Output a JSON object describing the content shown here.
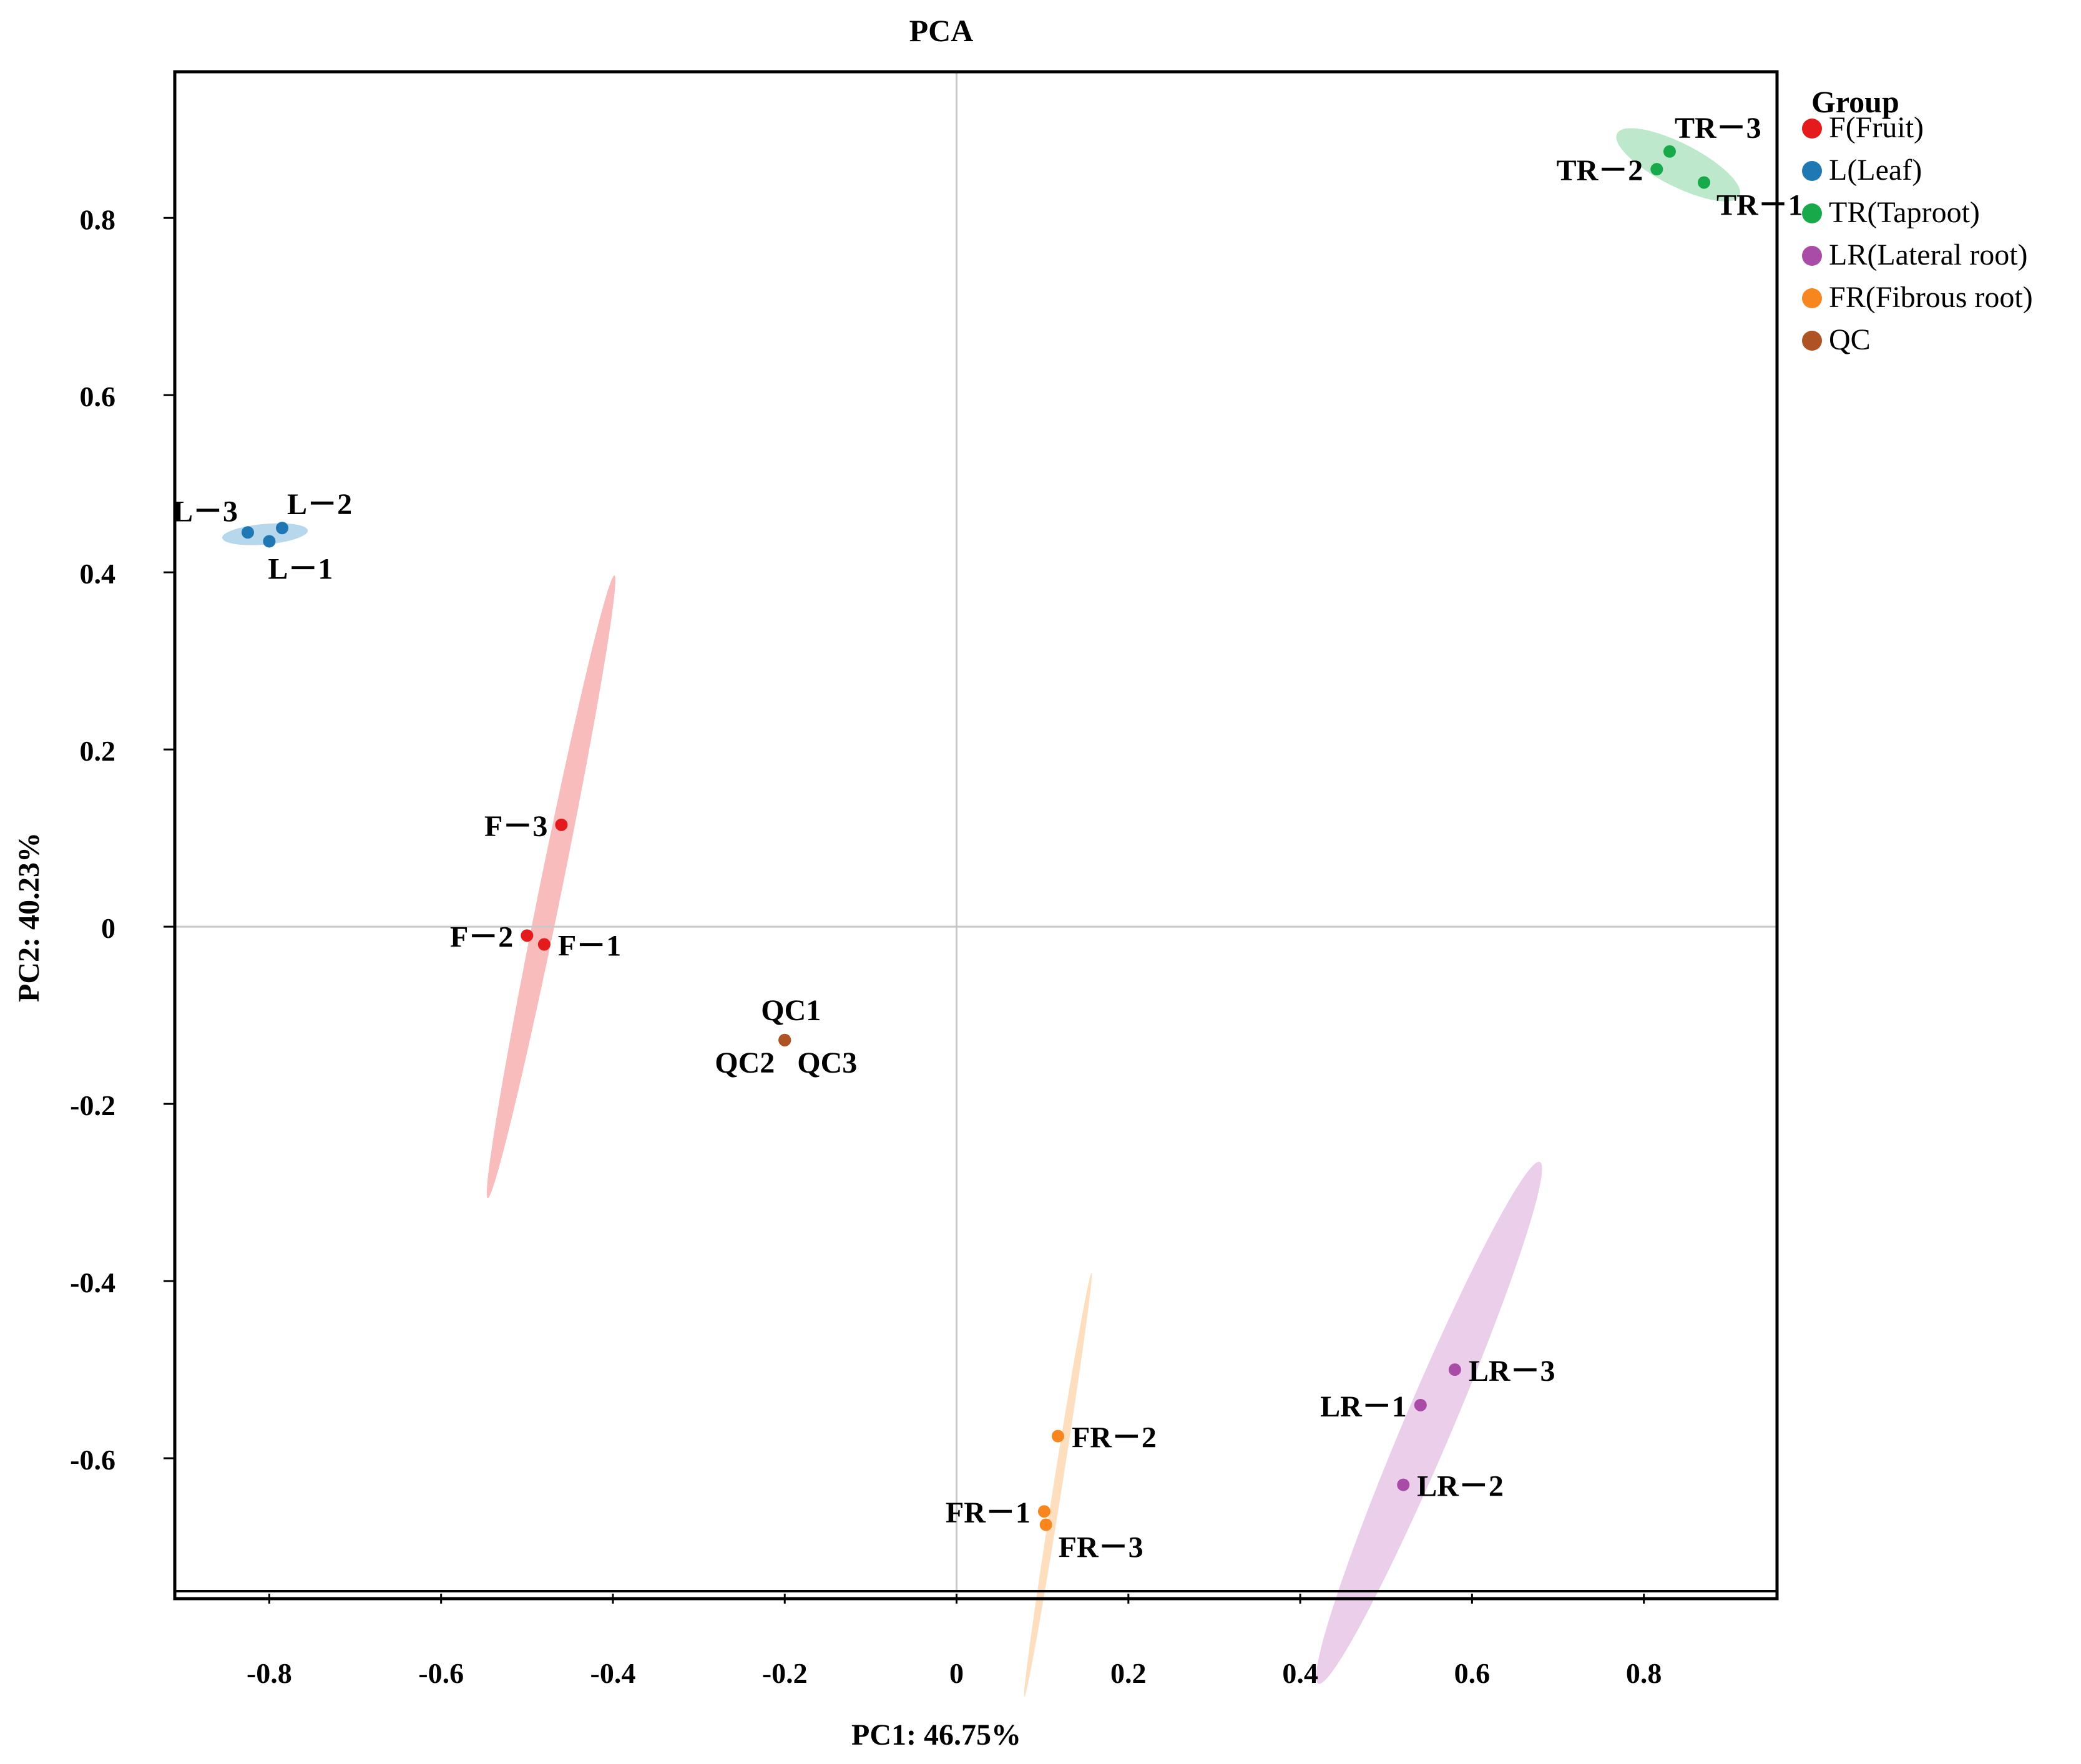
{
  "chart_data": {
    "type": "scatter",
    "title": "PCA",
    "xlabel": "PC1: 46.75%",
    "ylabel": "PC2: 40.23%",
    "xlim": [
      -0.91,
      0.955
    ],
    "ylim": [
      -0.75,
      0.965
    ],
    "xticks": [
      -0.8,
      -0.6,
      -0.4,
      -0.2,
      0,
      0.2,
      0.4,
      0.6,
      0.8
    ],
    "yticks": [
      0.8,
      0.6,
      0.4,
      0.2,
      0,
      -0.2,
      -0.4,
      -0.6
    ],
    "xtick_labels": [
      "-0.8",
      "-0.6",
      "-0.4",
      "-0.2",
      "0",
      "0.2",
      "0.4",
      "0.6",
      "0.8"
    ],
    "ytick_labels": [
      "0.8",
      "0.6",
      "0.4",
      "0.2",
      "0",
      "-0.2",
      "-0.4",
      "-0.6"
    ],
    "reference_lines": {
      "x": 0,
      "y": 0
    },
    "legend": {
      "title": "Group",
      "position": "right",
      "entries": [
        {
          "label": "F(Fruit)",
          "color": "#e41a1c"
        },
        {
          "label": "L(Leaf)",
          "color": "#1f78b4"
        },
        {
          "label": "TR(Taproot)",
          "color": "#18a94a"
        },
        {
          "label": "LR(Lateral root)",
          "color": "#a84ca8"
        },
        {
          "label": "FR(Fibrous root)",
          "color": "#f7861f"
        },
        {
          "label": "QC",
          "color": "#b05324"
        }
      ]
    },
    "series": [
      {
        "name": "F(Fruit)",
        "color": "#e41a1c",
        "ellipse": {
          "cx": -0.472,
          "cy": 0.045,
          "rx": 0.37,
          "ry": 0.013,
          "angle": 78.5,
          "fill": "#f48585"
        },
        "points": [
          {
            "label": "F－1",
            "x": -0.48,
            "y": -0.02,
            "anchor": "right"
          },
          {
            "label": "F－2",
            "x": -0.5,
            "y": -0.01,
            "anchor": "left"
          },
          {
            "label": "F－3",
            "x": -0.46,
            "y": 0.115,
            "anchor": "left"
          }
        ]
      },
      {
        "name": "L(Leaf)",
        "color": "#1f78b4",
        "ellipse": {
          "cx": -0.805,
          "cy": 0.443,
          "rx": 0.05,
          "ry": 0.012,
          "angle": 5,
          "fill": "#7cb7df"
        },
        "points": [
          {
            "label": "L－1",
            "x": -0.8,
            "y": 0.435,
            "anchor": "below"
          },
          {
            "label": "L－2",
            "x": -0.785,
            "y": 0.45,
            "anchor": "above-right"
          },
          {
            "label": "L－3",
            "x": -0.825,
            "y": 0.445,
            "anchor": "above-left"
          }
        ]
      },
      {
        "name": "TR(Taproot)",
        "color": "#18a94a",
        "ellipse": {
          "cx": 0.84,
          "cy": 0.86,
          "rx": 0.08,
          "ry": 0.025,
          "angle": -27,
          "fill": "#86d6a0"
        },
        "points": [
          {
            "label": "TR－1",
            "x": 0.87,
            "y": 0.84,
            "anchor": "below-right"
          },
          {
            "label": "TR－2",
            "x": 0.815,
            "y": 0.855,
            "anchor": "left"
          },
          {
            "label": "TR－3",
            "x": 0.83,
            "y": 0.875,
            "anchor": "above-right"
          }
        ]
      },
      {
        "name": "LR(Lateral root)",
        "color": "#a84ca8",
        "ellipse": {
          "cx": 0.55,
          "cy": -0.56,
          "rx": 0.33,
          "ry": 0.028,
          "angle": 67,
          "fill": "#d8a6d8"
        },
        "points": [
          {
            "label": "LR－1",
            "x": 0.54,
            "y": -0.54,
            "anchor": "left"
          },
          {
            "label": "LR－2",
            "x": 0.52,
            "y": -0.63,
            "anchor": "right"
          },
          {
            "label": "LR－3",
            "x": 0.58,
            "y": -0.5,
            "anchor": "right"
          }
        ]
      },
      {
        "name": "FR(Fibrous root)",
        "color": "#f7861f",
        "ellipse": {
          "cx": 0.118,
          "cy": -0.63,
          "rx": 0.25,
          "ry": 0.005,
          "angle": 81,
          "fill": "#fbc58c"
        },
        "points": [
          {
            "label": "FR－1",
            "x": 0.102,
            "y": -0.66,
            "anchor": "left"
          },
          {
            "label": "FR－2",
            "x": 0.118,
            "y": -0.575,
            "anchor": "right"
          },
          {
            "label": "FR－3",
            "x": 0.104,
            "y": -0.675,
            "anchor": "below-right"
          }
        ]
      },
      {
        "name": "QC",
        "color": "#b05324",
        "ellipse": null,
        "points": [
          {
            "label": "QC1",
            "x": -0.2,
            "y": -0.128,
            "anchor": "above"
          },
          {
            "label": "QC2",
            "x": -0.2,
            "y": -0.128,
            "anchor": "below-left"
          },
          {
            "label": "QC3",
            "x": -0.2,
            "y": -0.128,
            "anchor": "below-right"
          }
        ]
      }
    ]
  }
}
